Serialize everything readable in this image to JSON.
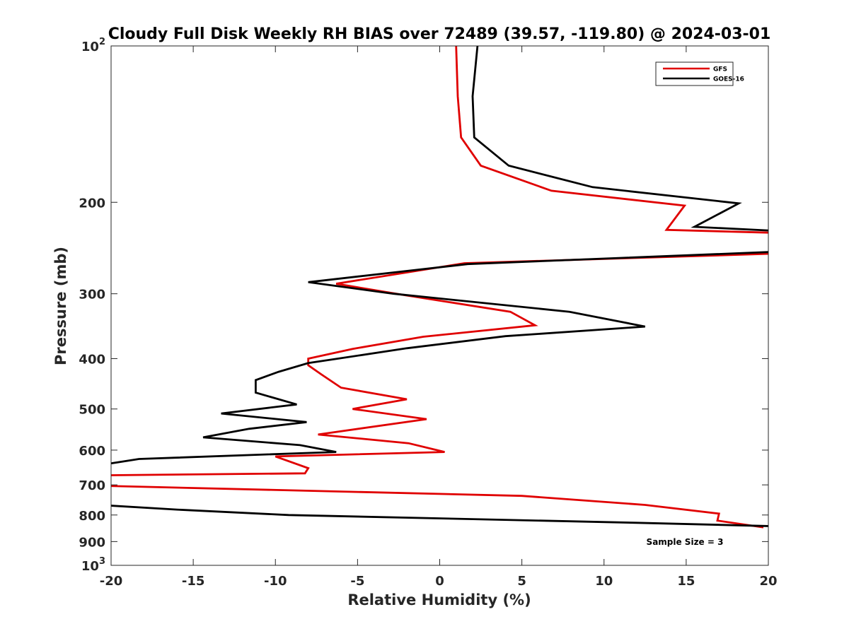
{
  "chart_data": {
    "type": "line",
    "title": "Cloudy Full Disk Weekly RH BIAS over 72489 (39.57, -119.80) @ 2024-03-01",
    "xlabel": "Relative Humidity (%)",
    "ylabel": "Pressure (mb)",
    "xlim": [
      -20,
      20
    ],
    "ylim": [
      1000,
      100
    ],
    "yscale": "log",
    "yreverse": true,
    "grid": false,
    "legend_position": "top-right",
    "x_ticks": [
      "-20",
      "-15",
      "-10",
      "-5",
      "0",
      "5",
      "10",
      "15",
      "20"
    ],
    "y_ticks": [
      {
        "value": 100,
        "label": "10",
        "sup": "2"
      },
      {
        "value": 200,
        "label": "200",
        "sup": ""
      },
      {
        "value": 300,
        "label": "300",
        "sup": ""
      },
      {
        "value": 400,
        "label": "400",
        "sup": ""
      },
      {
        "value": 500,
        "label": "500",
        "sup": ""
      },
      {
        "value": 600,
        "label": "600",
        "sup": ""
      },
      {
        "value": 700,
        "label": "700",
        "sup": ""
      },
      {
        "value": 800,
        "label": "800",
        "sup": ""
      },
      {
        "value": 900,
        "label": "900",
        "sup": ""
      },
      {
        "value": 1000,
        "label": "10",
        "sup": "3"
      }
    ],
    "series": [
      {
        "name": "GFS",
        "color": "#e00000",
        "points": [
          [
            1.0,
            100
          ],
          [
            1.1,
            125
          ],
          [
            1.3,
            150
          ],
          [
            2.5,
            170
          ],
          [
            6.8,
            190
          ],
          [
            14.9,
            203
          ],
          [
            13.8,
            226
          ],
          [
            20.5,
            229
          ],
          [
            20.5,
            251
          ],
          [
            1.5,
            262
          ],
          [
            -6.3,
            287
          ],
          [
            -2.1,
            302
          ],
          [
            4.3,
            325
          ],
          [
            5.8,
            345
          ],
          [
            -1.0,
            363
          ],
          [
            -5.3,
            383
          ],
          [
            -8.0,
            400
          ],
          [
            -8.0,
            412
          ],
          [
            -7.2,
            429
          ],
          [
            -6.0,
            455
          ],
          [
            -2.0,
            479
          ],
          [
            -5.3,
            500
          ],
          [
            -0.8,
            523
          ],
          [
            -7.4,
            560
          ],
          [
            -1.9,
            582
          ],
          [
            0.3,
            605
          ],
          [
            -10.0,
            617
          ],
          [
            -8.0,
            650
          ],
          [
            -8.2,
            665
          ],
          [
            -20.5,
            671
          ],
          [
            -20.5,
            703
          ],
          [
            5.0,
            735
          ],
          [
            12.5,
            765
          ],
          [
            17.0,
            795
          ],
          [
            16.9,
            820
          ],
          [
            19.7,
            845
          ]
        ]
      },
      {
        "name": "GOES-16",
        "color": "#000000",
        "points": [
          [
            2.3,
            100
          ],
          [
            2.0,
            125
          ],
          [
            2.1,
            150
          ],
          [
            4.2,
            170
          ],
          [
            9.3,
            187
          ],
          [
            18.2,
            201
          ],
          [
            15.5,
            223
          ],
          [
            20.5,
            227
          ],
          [
            20.5,
            249
          ],
          [
            1.7,
            263
          ],
          [
            -8.0,
            285
          ],
          [
            -2.8,
            300
          ],
          [
            7.9,
            325
          ],
          [
            12.5,
            347
          ],
          [
            4.0,
            362
          ],
          [
            -2.0,
            382
          ],
          [
            -8.0,
            408
          ],
          [
            -9.8,
            424
          ],
          [
            -11.2,
            440
          ],
          [
            -11.2,
            465
          ],
          [
            -8.7,
            490
          ],
          [
            -13.3,
            510
          ],
          [
            -8.1,
            530
          ],
          [
            -11.6,
            546
          ],
          [
            -14.4,
            567
          ],
          [
            -8.5,
            587
          ],
          [
            -6.3,
            605
          ],
          [
            -18.3,
            624
          ],
          [
            -20.5,
            640
          ],
          [
            -20.5,
            766
          ],
          [
            -16.0,
            781
          ],
          [
            -9.2,
            800
          ],
          [
            12.0,
            828
          ],
          [
            20.5,
            841
          ]
        ]
      }
    ],
    "annotations": [
      "Sample Size = 3"
    ]
  }
}
